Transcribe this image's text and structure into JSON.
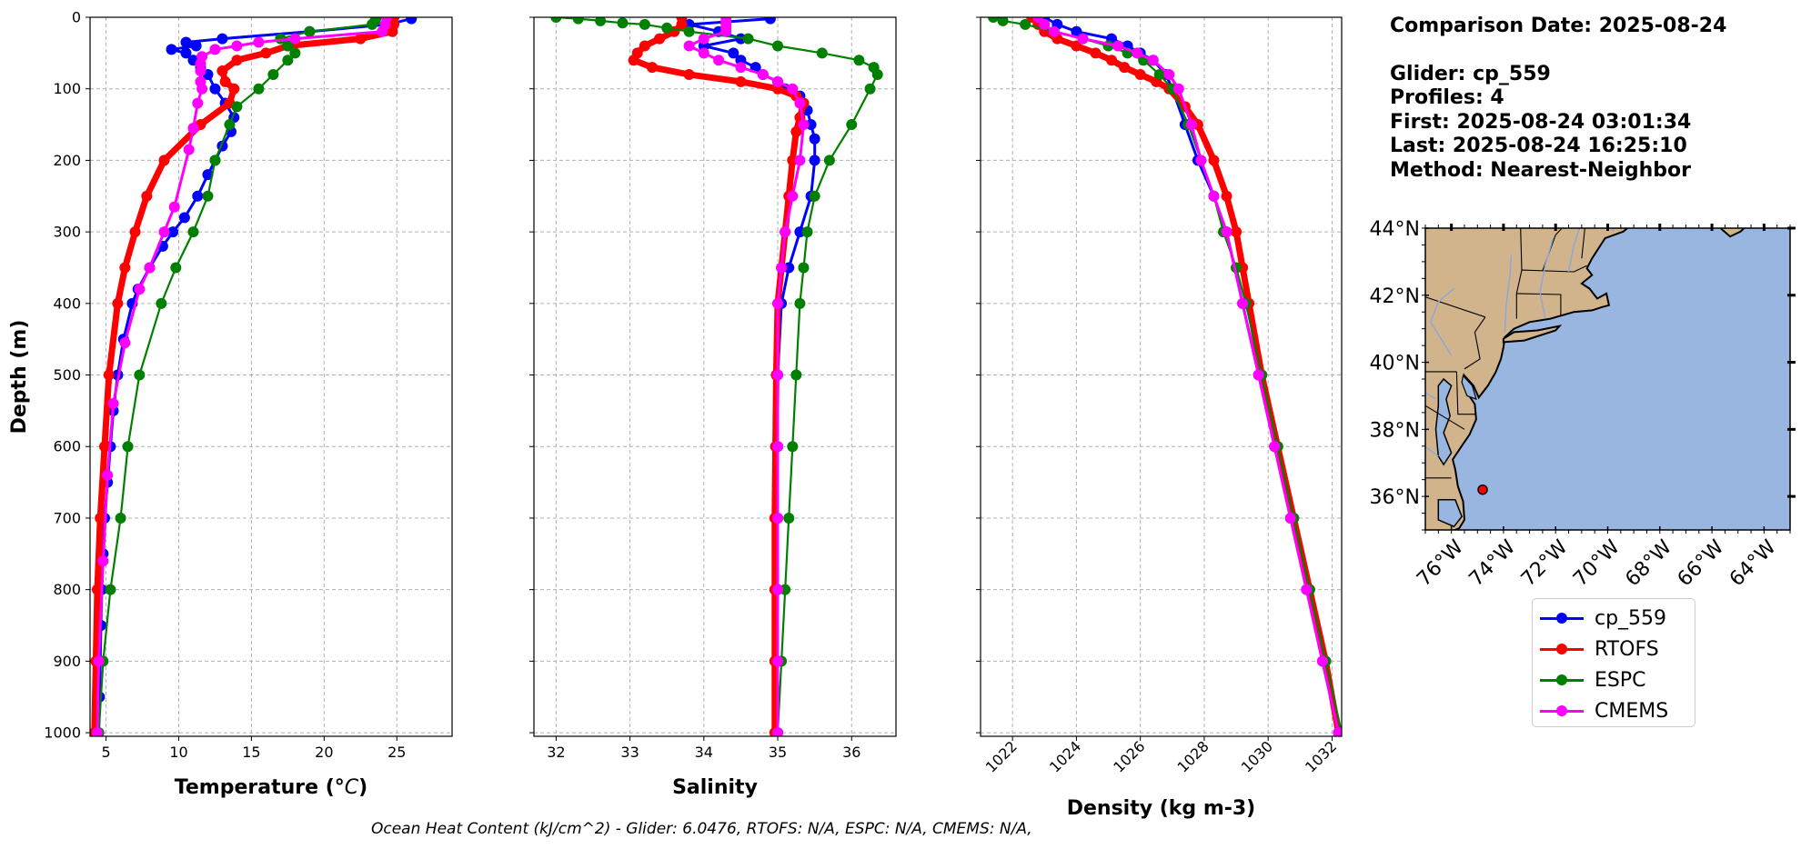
{
  "info": {
    "comparison_date": "Comparison Date: 2025-08-24",
    "glider": "Glider: cp_559",
    "profiles": "Profiles: 4",
    "first": "First: 2025-08-24 03:01:34",
    "last": "Last: 2025-08-24 16:25:10",
    "method": "Method: Nearest-Neighbor"
  },
  "footer": "Ocean Heat Content (kJ/cm^2) - Glider: 6.0476,  RTOFS: N/A,  ESPC: N/A,  CMEMS: N/A,",
  "colors": {
    "glider": "#0000ff",
    "glider_raw": "#00e5ee",
    "rtofs": "#ff0000",
    "espc": "#008000",
    "cmems": "#ff00ff",
    "land": "#d2b48c",
    "ocean": "#98b6e0",
    "grid": "#b0b0b0"
  },
  "legend": [
    {
      "label": "cp_559",
      "color": "#0000ff"
    },
    {
      "label": "RTOFS",
      "color": "#ff0000"
    },
    {
      "label": "ESPC",
      "color": "#008000"
    },
    {
      "label": "CMEMS",
      "color": "#ff00ff"
    }
  ],
  "chart_data": [
    {
      "type": "line",
      "xlabel": "Temperature (°C)",
      "ylabel": "Depth (m)",
      "xlim": [
        3.9,
        28.8
      ],
      "ylim": [
        1005,
        0
      ],
      "xticks": [
        5,
        10,
        15,
        20,
        25
      ],
      "yticks": [
        0,
        100,
        200,
        300,
        400,
        500,
        600,
        700,
        800,
        900,
        1000
      ],
      "grid": true,
      "series": [
        {
          "name": "cp_559",
          "key": "glider",
          "depth": [
            2,
            10,
            20,
            30,
            35,
            40,
            45,
            50,
            60,
            70,
            80,
            100,
            120,
            140,
            160,
            180,
            200,
            220,
            250,
            280,
            300,
            320,
            350,
            380,
            400,
            450,
            500,
            550,
            600,
            650,
            700,
            750,
            800,
            850,
            900,
            950,
            1000
          ],
          "values": [
            26.0,
            24.4,
            19.0,
            13.0,
            10.5,
            11.2,
            9.5,
            10.5,
            11.0,
            11.5,
            12.0,
            12.5,
            13.2,
            13.8,
            13.6,
            13.0,
            12.5,
            12.0,
            11.3,
            10.4,
            9.6,
            8.9,
            8.0,
            7.2,
            6.8,
            6.2,
            5.8,
            5.5,
            5.3,
            5.1,
            4.9,
            4.8,
            4.7,
            4.65,
            4.6,
            4.55,
            4.5
          ]
        },
        {
          "name": "RTOFS",
          "key": "rtofs",
          "depth": [
            0,
            10,
            20,
            30,
            40,
            50,
            60,
            75,
            90,
            100,
            120,
            150,
            200,
            250,
            300,
            350,
            400,
            500,
            600,
            700,
            800,
            900,
            1000
          ],
          "values": [
            24.8,
            24.8,
            24.7,
            22.5,
            17.5,
            16.0,
            14.0,
            13.0,
            13.2,
            13.8,
            13.5,
            11.5,
            9.0,
            7.8,
            7.0,
            6.3,
            5.8,
            5.2,
            4.9,
            4.6,
            4.4,
            4.3,
            4.2
          ]
        },
        {
          "name": "ESPC",
          "key": "espc",
          "depth": [
            0,
            5,
            10,
            20,
            30,
            40,
            50,
            60,
            80,
            100,
            125,
            150,
            200,
            250,
            300,
            350,
            400,
            500,
            600,
            700,
            800,
            900,
            1000
          ],
          "values": [
            23.6,
            23.5,
            23.3,
            19.0,
            17.0,
            17.5,
            18.0,
            17.5,
            16.5,
            15.5,
            14.0,
            13.5,
            12.5,
            12.0,
            11.0,
            9.8,
            8.8,
            7.3,
            6.5,
            6.0,
            5.3,
            4.8,
            4.5
          ]
        },
        {
          "name": "CMEMS",
          "key": "cmems",
          "depth": [
            0,
            10,
            20,
            30,
            35,
            40,
            45,
            55,
            65,
            75,
            90,
            100,
            120,
            155,
            185,
            265,
            300,
            350,
            380,
            455,
            540,
            640,
            760,
            900,
            1000
          ],
          "values": [
            24.3,
            24.2,
            24.0,
            18.0,
            15.5,
            14.0,
            12.5,
            11.6,
            11.5,
            11.5,
            11.5,
            11.6,
            11.3,
            11.0,
            10.7,
            9.7,
            9.0,
            8.0,
            7.3,
            6.3,
            5.5,
            5.1,
            4.8,
            4.5,
            4.4
          ]
        }
      ]
    },
    {
      "type": "line",
      "xlabel": "Salinity",
      "xlim": [
        31.7,
        36.6
      ],
      "ylim": [
        1005,
        0
      ],
      "xticks": [
        32,
        33,
        34,
        35,
        36
      ],
      "yticks": [
        0,
        100,
        200,
        300,
        400,
        500,
        600,
        700,
        800,
        900,
        1000
      ],
      "grid": true,
      "series": [
        {
          "name": "cp_559",
          "key": "glider",
          "depth": [
            2,
            10,
            20,
            30,
            40,
            50,
            60,
            70,
            80,
            90,
            100,
            110,
            120,
            130,
            150,
            170,
            200,
            250,
            300,
            350,
            400,
            500,
            600,
            700,
            800,
            900,
            1000
          ],
          "values": [
            34.9,
            33.8,
            34.2,
            34.5,
            34.0,
            34.4,
            34.5,
            34.7,
            34.8,
            35.0,
            35.1,
            35.3,
            35.35,
            35.4,
            35.45,
            35.5,
            35.5,
            35.45,
            35.3,
            35.15,
            35.05,
            35.0,
            35.0,
            35.0,
            35.0,
            35.0,
            35.0
          ]
        },
        {
          "name": "RTOFS",
          "key": "rtofs",
          "depth": [
            0,
            10,
            20,
            30,
            40,
            50,
            60,
            70,
            80,
            90,
            100,
            110,
            120,
            140,
            160,
            200,
            250,
            300,
            350,
            400,
            500,
            600,
            700,
            800,
            900,
            1000
          ],
          "values": [
            33.7,
            33.7,
            33.6,
            33.4,
            33.2,
            33.1,
            33.05,
            33.3,
            33.8,
            34.5,
            35.0,
            35.25,
            35.35,
            35.3,
            35.25,
            35.2,
            35.15,
            35.1,
            35.05,
            35.0,
            34.98,
            34.97,
            34.96,
            34.96,
            34.96,
            34.96
          ]
        },
        {
          "name": "ESPC",
          "key": "espc",
          "depth": [
            0,
            2,
            5,
            8,
            10,
            15,
            20,
            30,
            40,
            50,
            60,
            70,
            80,
            100,
            150,
            200,
            250,
            300,
            350,
            400,
            500,
            600,
            700,
            800,
            900,
            1000
          ],
          "values": [
            32.0,
            32.3,
            32.6,
            32.9,
            33.2,
            33.5,
            33.8,
            34.6,
            35.0,
            35.6,
            36.1,
            36.3,
            36.35,
            36.25,
            36.0,
            35.7,
            35.5,
            35.4,
            35.35,
            35.3,
            35.25,
            35.2,
            35.15,
            35.1,
            35.05,
            35.0
          ]
        },
        {
          "name": "CMEMS",
          "key": "cmems",
          "depth": [
            0,
            5,
            10,
            15,
            20,
            30,
            40,
            50,
            60,
            70,
            80,
            90,
            100,
            120,
            150,
            200,
            250,
            300,
            350,
            400,
            500,
            600,
            700,
            800,
            900,
            1000
          ],
          "values": [
            34.3,
            34.3,
            34.3,
            34.3,
            34.3,
            34.0,
            33.8,
            34.0,
            34.2,
            34.5,
            34.8,
            35.0,
            35.2,
            35.3,
            35.35,
            35.3,
            35.2,
            35.1,
            35.05,
            35.0,
            35.0,
            35.0,
            35.0,
            35.0,
            35.0,
            35.0
          ]
        }
      ]
    },
    {
      "type": "line",
      "xlabel": "Density (kg m-3)",
      "xlim": [
        1021.0,
        1032.3
      ],
      "ylim": [
        1005,
        0
      ],
      "xticks": [
        1022,
        1024,
        1026,
        1028,
        1030,
        1032
      ],
      "yticks": [
        0,
        100,
        200,
        300,
        400,
        500,
        600,
        700,
        800,
        900,
        1000
      ],
      "grid": true,
      "series": [
        {
          "name": "cp_559",
          "key": "glider",
          "depth": [
            0,
            10,
            20,
            30,
            40,
            50,
            60,
            80,
            100,
            150,
            200,
            250,
            300,
            400,
            500,
            600,
            700,
            800,
            900,
            1000
          ],
          "values": [
            1023.0,
            1023.4,
            1024.0,
            1025.1,
            1025.6,
            1026.0,
            1026.4,
            1026.8,
            1027.0,
            1027.4,
            1027.8,
            1028.3,
            1028.7,
            1029.2,
            1029.7,
            1030.2,
            1030.7,
            1031.2,
            1031.7,
            1032.2
          ]
        },
        {
          "name": "RTOFS",
          "key": "rtofs",
          "depth": [
            0,
            10,
            20,
            30,
            40,
            50,
            60,
            70,
            80,
            90,
            100,
            125,
            150,
            200,
            250,
            300,
            350,
            400,
            500,
            600,
            700,
            800,
            900,
            1000
          ],
          "values": [
            1022.6,
            1022.8,
            1023.0,
            1023.4,
            1024.0,
            1024.6,
            1025.1,
            1025.5,
            1026.0,
            1026.5,
            1026.9,
            1027.4,
            1027.8,
            1028.3,
            1028.7,
            1029.0,
            1029.2,
            1029.4,
            1029.8,
            1030.3,
            1030.8,
            1031.3,
            1031.8,
            1032.2
          ]
        },
        {
          "name": "ESPC",
          "key": "espc",
          "depth": [
            0,
            5,
            10,
            20,
            30,
            40,
            50,
            60,
            80,
            100,
            150,
            200,
            250,
            300,
            350,
            400,
            500,
            600,
            700,
            800,
            900,
            1000
          ],
          "values": [
            1021.4,
            1021.7,
            1022.4,
            1023.3,
            1024.2,
            1025.0,
            1025.6,
            1026.1,
            1026.6,
            1027.0,
            1027.5,
            1027.9,
            1028.3,
            1028.6,
            1029.0,
            1029.3,
            1029.8,
            1030.3,
            1030.8,
            1031.3,
            1031.8,
            1032.3
          ]
        },
        {
          "name": "CMEMS",
          "key": "cmems",
          "depth": [
            0,
            10,
            20,
            30,
            40,
            50,
            60,
            80,
            100,
            150,
            200,
            250,
            300,
            400,
            500,
            600,
            700,
            800,
            900,
            1000
          ],
          "values": [
            1022.8,
            1023.0,
            1023.3,
            1024.2,
            1025.3,
            1025.9,
            1026.4,
            1026.9,
            1027.2,
            1027.6,
            1027.9,
            1028.3,
            1028.7,
            1029.2,
            1029.7,
            1030.2,
            1030.7,
            1031.2,
            1031.7,
            1032.2
          ]
        }
      ]
    },
    {
      "type": "map",
      "lon_range": [
        -77.0,
        -63.0
      ],
      "lat_range": [
        35.0,
        44.0
      ],
      "xticks": [
        "76°W",
        "74°W",
        "72°W",
        "70°W",
        "68°W",
        "66°W",
        "64°W"
      ],
      "yticks": [
        "44°N",
        "42°N",
        "40°N",
        "38°N",
        "36°N"
      ],
      "xtick_values": [
        -76,
        -74,
        -72,
        -70,
        -68,
        -66,
        -64
      ],
      "ytick_values": [
        44,
        42,
        40,
        38,
        36
      ],
      "glider_position": {
        "lon": -74.8,
        "lat": 36.2
      }
    }
  ]
}
